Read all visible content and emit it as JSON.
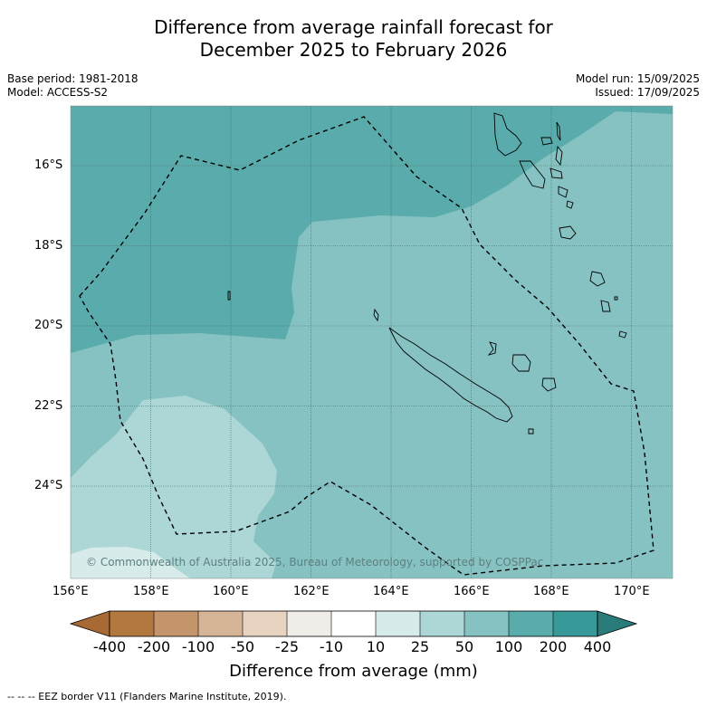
{
  "title_line1": "Difference from average rainfall forecast for",
  "title_line2": "December 2025 to February 2026",
  "base_period": "Base period: 1981-2018",
  "model": "Model: ACCESS-S2",
  "model_run": "Model run: 15/09/2025",
  "issued": "Issued: 17/09/2025",
  "copyright": "© Commonwealth of Australia 2025, Bureau of Meteorology, supported by COSPPac",
  "lat_labels": [
    "16°S",
    "18°S",
    "20°S",
    "22°S",
    "24°S"
  ],
  "lon_labels": [
    "156°E",
    "158°E",
    "160°E",
    "162°E",
    "164°E",
    "166°E",
    "168°E",
    "170°E"
  ],
  "colorbar": {
    "title": "Difference from average (mm)",
    "labels": [
      "-400",
      "-200",
      "-100",
      "-50",
      "-25",
      "-10",
      "10",
      "25",
      "50",
      "100",
      "200",
      "400"
    ],
    "colors": [
      "#a86a35",
      "#b37840",
      "#c4956b",
      "#d6b497",
      "#e8d3c0",
      "#f0ece8",
      "#ffffff",
      "#d6ebea",
      "#add6d6",
      "#86c2c1",
      "#5aabab",
      "#379a98",
      "#2a7c7b"
    ]
  },
  "footnote": "--  --  -- EEZ border V11 (Flanders Marine Institute, 2019).",
  "map_colors": {
    "class_200": "#5aabab",
    "class_100": "#86c2c1",
    "class_50": "#add6d6",
    "class_25": "#d6ebea"
  }
}
